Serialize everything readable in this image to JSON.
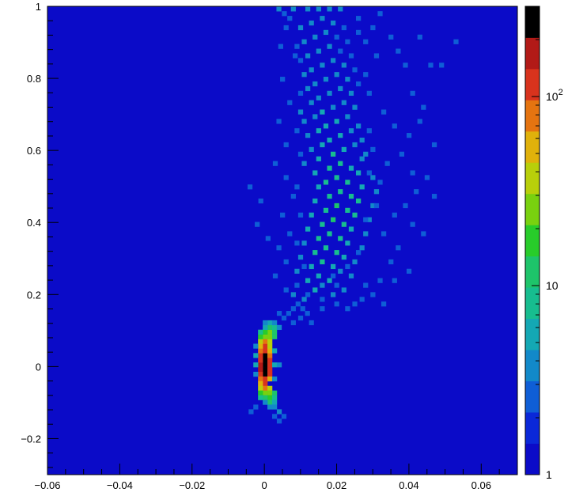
{
  "chart_data": {
    "type": "heatmap",
    "title": "",
    "xlabel": "",
    "ylabel": "",
    "xlim": [
      -0.06,
      0.07
    ],
    "ylim": [
      -0.3,
      1.0
    ],
    "x_ticks": [
      {
        "value": -0.06,
        "label": "−0.06"
      },
      {
        "value": -0.04,
        "label": "−0.04"
      },
      {
        "value": -0.02,
        "label": "−0.02"
      },
      {
        "value": 0,
        "label": "0"
      },
      {
        "value": 0.02,
        "label": "0.02"
      },
      {
        "value": 0.04,
        "label": "0.04"
      },
      {
        "value": 0.06,
        "label": "0.06"
      }
    ],
    "y_ticks": [
      {
        "value": -0.2,
        "label": "−0.2"
      },
      {
        "value": 0,
        "label": "0"
      },
      {
        "value": 0.2,
        "label": "0.2"
      },
      {
        "value": 0.4,
        "label": "0.4"
      },
      {
        "value": 0.6,
        "label": "0.6"
      },
      {
        "value": 0.8,
        "label": "0.8"
      },
      {
        "value": 1,
        "label": "1"
      }
    ],
    "colorbar": {
      "scale": "log",
      "zmin": 1,
      "zmax": 300,
      "tick_labels": [
        {
          "value": 1,
          "label": "1"
        },
        {
          "value": 10,
          "label": "10"
        },
        {
          "value": 100,
          "label": "10",
          "sup": "2"
        }
      ],
      "palette": [
        "#0b0bc8",
        "#0a28d8",
        "#0f5ed6",
        "#1289c9",
        "#14a8b4",
        "#17bd8f",
        "#1ec46a",
        "#28cc2a",
        "#79d10f",
        "#b8cf0a",
        "#e0b10b",
        "#e57410",
        "#d8331d",
        "#b21a17",
        "#000000"
      ]
    },
    "background_color": "#0b0bc8",
    "bin_width_x": 0.0013,
    "bin_width_y": 0.013,
    "cells": [
      [
        0.0002,
        0.005,
        300
      ],
      [
        0.0002,
        -0.008,
        300
      ],
      [
        0.0002,
        0.018,
        300
      ],
      [
        0.0002,
        0.031,
        260
      ],
      [
        0.0002,
        -0.021,
        260
      ],
      [
        -0.0011,
        0.005,
        170
      ],
      [
        -0.0011,
        -0.008,
        170
      ],
      [
        -0.0011,
        0.018,
        150
      ],
      [
        -0.0011,
        0.031,
        150
      ],
      [
        -0.0011,
        -0.021,
        150
      ],
      [
        0.0015,
        0.005,
        150
      ],
      [
        0.0015,
        -0.008,
        150
      ],
      [
        0.0015,
        0.018,
        130
      ],
      [
        0.0015,
        -0.021,
        110
      ],
      [
        0.0002,
        0.044,
        150
      ],
      [
        0.0002,
        -0.034,
        150
      ],
      [
        0.0002,
        0.057,
        130
      ],
      [
        0.0002,
        -0.047,
        130
      ],
      [
        -0.0011,
        0.044,
        80
      ],
      [
        -0.0011,
        -0.034,
        80
      ],
      [
        -0.0011,
        0.057,
        60
      ],
      [
        -0.0011,
        -0.047,
        60
      ],
      [
        0.0015,
        0.031,
        90
      ],
      [
        0.0015,
        0.044,
        60
      ],
      [
        0.0015,
        -0.034,
        60
      ],
      [
        0.0015,
        0.057,
        45
      ],
      [
        0.0002,
        0.07,
        100
      ],
      [
        0.0002,
        -0.06,
        100
      ],
      [
        0.0015,
        0.07,
        40
      ],
      [
        0.0015,
        -0.06,
        35
      ],
      [
        -0.0011,
        0.07,
        40
      ],
      [
        -0.0011,
        -0.06,
        35
      ],
      [
        0.0015,
        0.083,
        30
      ],
      [
        0.0002,
        0.083,
        25
      ],
      [
        -0.0011,
        0.083,
        18
      ],
      [
        0.0028,
        0.083,
        12
      ],
      [
        0.0015,
        0.096,
        22
      ],
      [
        0.0002,
        0.096,
        16
      ],
      [
        0.0028,
        0.096,
        10
      ],
      [
        -0.0011,
        0.096,
        9
      ],
      [
        0.0015,
        0.109,
        12
      ],
      [
        0.0028,
        0.109,
        8
      ],
      [
        0.0002,
        0.109,
        6
      ],
      [
        0.0041,
        0.109,
        4
      ],
      [
        0.0015,
        0.122,
        5
      ],
      [
        0.0028,
        0.122,
        4
      ],
      [
        0.0002,
        0.122,
        3
      ],
      [
        0.0015,
        -0.073,
        30
      ],
      [
        0.0002,
        -0.073,
        25
      ],
      [
        -0.0011,
        -0.073,
        18
      ],
      [
        0.0028,
        -0.073,
        10
      ],
      [
        0.0015,
        -0.086,
        18
      ],
      [
        0.0002,
        -0.086,
        14
      ],
      [
        0.0028,
        -0.086,
        8
      ],
      [
        -0.0011,
        -0.086,
        8
      ],
      [
        0.0015,
        -0.099,
        10
      ],
      [
        0.0028,
        -0.099,
        5
      ],
      [
        0.0002,
        -0.099,
        4
      ],
      [
        0.0015,
        -0.112,
        4
      ],
      [
        0.0028,
        -0.112,
        3
      ],
      [
        0.0041,
        -0.125,
        3
      ],
      [
        -0.0024,
        -0.112,
        2
      ],
      [
        -0.0024,
        0.031,
        6
      ],
      [
        -0.0024,
        0.005,
        5
      ],
      [
        -0.0024,
        -0.021,
        4
      ],
      [
        -0.0024,
        0.057,
        3
      ],
      [
        0.0028,
        0.005,
        6
      ],
      [
        0.0028,
        -0.034,
        4
      ],
      [
        0.0028,
        0.044,
        5
      ],
      [
        0.0041,
        0.005,
        3
      ],
      [
        0.0054,
        -0.138,
        2
      ],
      [
        0.0041,
        -0.151,
        2
      ],
      [
        0.0028,
        -0.138,
        2
      ],
      [
        -0.0037,
        -0.125,
        2
      ],
      [
        0.0054,
        0.135,
        2
      ],
      [
        0.0067,
        0.148,
        2
      ],
      [
        0.008,
        0.161,
        2
      ],
      [
        0.0093,
        0.174,
        2
      ],
      [
        0.0106,
        0.161,
        2
      ],
      [
        0.0119,
        0.148,
        2
      ],
      [
        0.0041,
        0.148,
        2
      ],
      [
        0.008,
        0.2,
        3
      ],
      [
        0.011,
        0.187,
        4
      ],
      [
        0.014,
        0.213,
        5
      ],
      [
        0.016,
        0.226,
        4
      ],
      [
        0.019,
        0.2,
        3
      ],
      [
        0.022,
        0.213,
        3
      ],
      [
        0.012,
        0.239,
        5
      ],
      [
        0.015,
        0.252,
        6
      ],
      [
        0.018,
        0.239,
        5
      ],
      [
        0.021,
        0.265,
        4
      ],
      [
        0.024,
        0.252,
        3
      ],
      [
        0.009,
        0.265,
        3
      ],
      [
        0.013,
        0.278,
        6
      ],
      [
        0.016,
        0.291,
        7
      ],
      [
        0.019,
        0.278,
        6
      ],
      [
        0.022,
        0.304,
        5
      ],
      [
        0.025,
        0.291,
        4
      ],
      [
        0.01,
        0.304,
        3
      ],
      [
        0.014,
        0.317,
        7
      ],
      [
        0.017,
        0.33,
        8
      ],
      [
        0.02,
        0.317,
        7
      ],
      [
        0.023,
        0.343,
        5
      ],
      [
        0.011,
        0.343,
        4
      ],
      [
        0.027,
        0.33,
        3
      ],
      [
        0.015,
        0.356,
        8
      ],
      [
        0.018,
        0.369,
        9
      ],
      [
        0.021,
        0.356,
        8
      ],
      [
        0.024,
        0.382,
        6
      ],
      [
        0.012,
        0.382,
        5
      ],
      [
        0.028,
        0.369,
        3
      ],
      [
        0.016,
        0.395,
        9
      ],
      [
        0.019,
        0.408,
        10
      ],
      [
        0.022,
        0.395,
        9
      ],
      [
        0.025,
        0.421,
        7
      ],
      [
        0.013,
        0.421,
        6
      ],
      [
        0.029,
        0.408,
        4
      ],
      [
        0.017,
        0.434,
        9
      ],
      [
        0.02,
        0.447,
        10
      ],
      [
        0.023,
        0.434,
        9
      ],
      [
        0.026,
        0.46,
        7
      ],
      [
        0.014,
        0.46,
        6
      ],
      [
        0.03,
        0.447,
        4
      ],
      [
        0.018,
        0.473,
        8
      ],
      [
        0.021,
        0.486,
        9
      ],
      [
        0.024,
        0.473,
        8
      ],
      [
        0.027,
        0.499,
        6
      ],
      [
        0.015,
        0.499,
        6
      ],
      [
        0.031,
        0.486,
        3
      ],
      [
        0.017,
        0.512,
        8
      ],
      [
        0.02,
        0.525,
        9
      ],
      [
        0.023,
        0.512,
        7
      ],
      [
        0.026,
        0.538,
        6
      ],
      [
        0.014,
        0.538,
        5
      ],
      [
        0.03,
        0.525,
        3
      ],
      [
        0.018,
        0.551,
        8
      ],
      [
        0.021,
        0.564,
        8
      ],
      [
        0.024,
        0.551,
        6
      ],
      [
        0.015,
        0.577,
        5
      ],
      [
        0.027,
        0.577,
        4
      ],
      [
        0.011,
        0.564,
        3
      ],
      [
        0.019,
        0.59,
        7
      ],
      [
        0.022,
        0.603,
        6
      ],
      [
        0.016,
        0.616,
        6
      ],
      [
        0.025,
        0.616,
        4
      ],
      [
        0.013,
        0.603,
        4
      ],
      [
        0.028,
        0.59,
        3
      ],
      [
        0.018,
        0.629,
        6
      ],
      [
        0.021,
        0.642,
        5
      ],
      [
        0.015,
        0.655,
        5
      ],
      [
        0.024,
        0.655,
        4
      ],
      [
        0.012,
        0.642,
        3
      ],
      [
        0.027,
        0.629,
        3
      ],
      [
        0.017,
        0.668,
        5
      ],
      [
        0.02,
        0.681,
        5
      ],
      [
        0.014,
        0.694,
        4
      ],
      [
        0.023,
        0.694,
        4
      ],
      [
        0.011,
        0.681,
        3
      ],
      [
        0.026,
        0.668,
        3
      ],
      [
        0.016,
        0.707,
        5
      ],
      [
        0.019,
        0.72,
        4
      ],
      [
        0.022,
        0.733,
        4
      ],
      [
        0.013,
        0.733,
        3
      ],
      [
        0.025,
        0.72,
        3
      ],
      [
        0.01,
        0.707,
        3
      ],
      [
        0.015,
        0.746,
        4
      ],
      [
        0.018,
        0.759,
        4
      ],
      [
        0.021,
        0.772,
        3
      ],
      [
        0.012,
        0.772,
        3
      ],
      [
        0.024,
        0.759,
        3
      ],
      [
        0.014,
        0.785,
        4
      ],
      [
        0.017,
        0.798,
        3
      ],
      [
        0.02,
        0.811,
        3
      ],
      [
        0.011,
        0.811,
        3
      ],
      [
        0.023,
        0.798,
        3
      ],
      [
        0.026,
        0.785,
        2
      ],
      [
        0.013,
        0.824,
        3
      ],
      [
        0.016,
        0.837,
        3
      ],
      [
        0.019,
        0.85,
        3
      ],
      [
        0.022,
        0.837,
        3
      ],
      [
        0.01,
        0.85,
        2
      ],
      [
        0.025,
        0.824,
        2
      ],
      [
        0.012,
        0.863,
        3
      ],
      [
        0.015,
        0.876,
        3
      ],
      [
        0.018,
        0.889,
        3
      ],
      [
        0.021,
        0.876,
        2
      ],
      [
        0.024,
        0.863,
        2
      ],
      [
        0.009,
        0.889,
        2
      ],
      [
        0.011,
        0.902,
        3
      ],
      [
        0.014,
        0.915,
        3
      ],
      [
        0.017,
        0.928,
        3
      ],
      [
        0.02,
        0.915,
        2
      ],
      [
        0.023,
        0.902,
        2
      ],
      [
        0.026,
        0.928,
        2
      ],
      [
        0.01,
        0.941,
        3
      ],
      [
        0.013,
        0.954,
        3
      ],
      [
        0.016,
        0.967,
        3
      ],
      [
        0.019,
        0.954,
        3
      ],
      [
        0.022,
        0.941,
        2
      ],
      [
        0.007,
        0.967,
        2
      ],
      [
        0.008,
        0.993,
        3
      ],
      [
        0.012,
        0.993,
        4
      ],
      [
        0.015,
        0.993,
        3
      ],
      [
        0.018,
        0.993,
        4
      ],
      [
        0.021,
        0.993,
        3
      ],
      [
        0.004,
        0.993,
        3
      ],
      [
        0.0055,
        0.98,
        2
      ],
      [
        0.03,
        0.941,
        2
      ],
      [
        0.032,
        0.98,
        2
      ],
      [
        0.035,
        0.915,
        2
      ],
      [
        0.037,
        0.876,
        2
      ],
      [
        0.039,
        0.837,
        2
      ],
      [
        0.043,
        0.915,
        2
      ],
      [
        0.046,
        0.837,
        2
      ],
      [
        0.049,
        0.837,
        2
      ],
      [
        0.053,
        0.902,
        2
      ],
      [
        0.041,
        0.759,
        2
      ],
      [
        0.044,
        0.72,
        2
      ],
      [
        0.033,
        0.707,
        2
      ],
      [
        0.036,
        0.668,
        2
      ],
      [
        0.038,
        0.59,
        2
      ],
      [
        0.041,
        0.538,
        2
      ],
      [
        0.042,
        0.486,
        2
      ],
      [
        0.039,
        0.447,
        2
      ],
      [
        0.036,
        0.421,
        2
      ],
      [
        0.041,
        0.395,
        2
      ],
      [
        0.033,
        0.369,
        2
      ],
      [
        0.037,
        0.33,
        2
      ],
      [
        0.035,
        0.291,
        2
      ],
      [
        0.04,
        0.265,
        2
      ],
      [
        0.032,
        0.239,
        2
      ],
      [
        0.03,
        0.2,
        2
      ],
      [
        0.027,
        0.187,
        2
      ],
      [
        0.025,
        0.174,
        2
      ],
      [
        0.02,
        0.174,
        2
      ],
      [
        0.003,
        0.252,
        2
      ],
      [
        0.006,
        0.291,
        2
      ],
      [
        0.004,
        0.33,
        2
      ],
      [
        0.007,
        0.369,
        2
      ],
      [
        0.005,
        0.421,
        2
      ],
      [
        0.008,
        0.473,
        2
      ],
      [
        0.006,
        0.525,
        2
      ],
      [
        0.003,
        0.564,
        2
      ],
      [
        0.006,
        0.616,
        2
      ],
      [
        0.004,
        0.681,
        2
      ],
      [
        0.007,
        0.733,
        2
      ],
      [
        0.005,
        0.798,
        2
      ],
      [
        -0.001,
        0.46,
        2
      ],
      [
        -0.004,
        0.499,
        2
      ],
      [
        0.001,
        0.356,
        2
      ],
      [
        -0.002,
        0.395,
        2
      ],
      [
        0.009,
        0.226,
        2
      ],
      [
        0.006,
        0.213,
        2
      ],
      [
        0.01,
        0.135,
        2
      ],
      [
        0.013,
        0.122,
        2
      ],
      [
        0.008,
        0.122,
        2
      ],
      [
        0.016,
        0.161,
        2
      ],
      [
        0.02,
        0.226,
        2
      ],
      [
        0.028,
        0.226,
        2
      ],
      [
        0.023,
        0.161,
        2
      ],
      [
        0.033,
        0.174,
        2
      ],
      [
        0.036,
        0.239,
        2
      ],
      [
        0.044,
        0.369,
        2
      ],
      [
        0.047,
        0.473,
        2
      ],
      [
        0.045,
        0.525,
        2
      ],
      [
        0.047,
        0.616,
        2
      ],
      [
        0.043,
        0.681,
        2
      ],
      [
        0.04,
        0.642,
        2
      ],
      [
        0.034,
        0.564,
        2
      ],
      [
        0.03,
        0.603,
        2
      ],
      [
        0.029,
        0.655,
        2
      ],
      [
        0.029,
        0.759,
        2
      ],
      [
        0.028,
        0.811,
        2
      ],
      [
        0.031,
        0.863,
        2
      ],
      [
        0.028,
        0.902,
        2
      ],
      [
        0.026,
        0.967,
        2
      ],
      [
        0.0045,
        0.889,
        2
      ],
      [
        0.006,
        0.941,
        2
      ],
      [
        0.0085,
        0.863,
        2
      ],
      [
        0.01,
        0.759,
        2
      ],
      [
        0.009,
        0.655,
        2
      ],
      [
        0.01,
        0.59,
        2
      ],
      [
        0.009,
        0.499,
        2
      ],
      [
        0.01,
        0.421,
        2
      ],
      [
        0.009,
        0.343,
        2
      ],
      [
        0.011,
        0.278,
        2
      ],
      [
        0.012,
        0.2,
        2
      ],
      [
        0.016,
        0.187,
        2
      ],
      [
        0.019,
        0.252,
        2
      ],
      [
        0.023,
        0.278,
        2
      ],
      [
        0.026,
        0.317,
        2
      ],
      [
        0.028,
        0.408,
        2
      ],
      [
        0.029,
        0.538,
        2
      ],
      [
        0.031,
        0.447,
        2
      ],
      [
        0.032,
        0.512,
        2
      ]
    ]
  }
}
